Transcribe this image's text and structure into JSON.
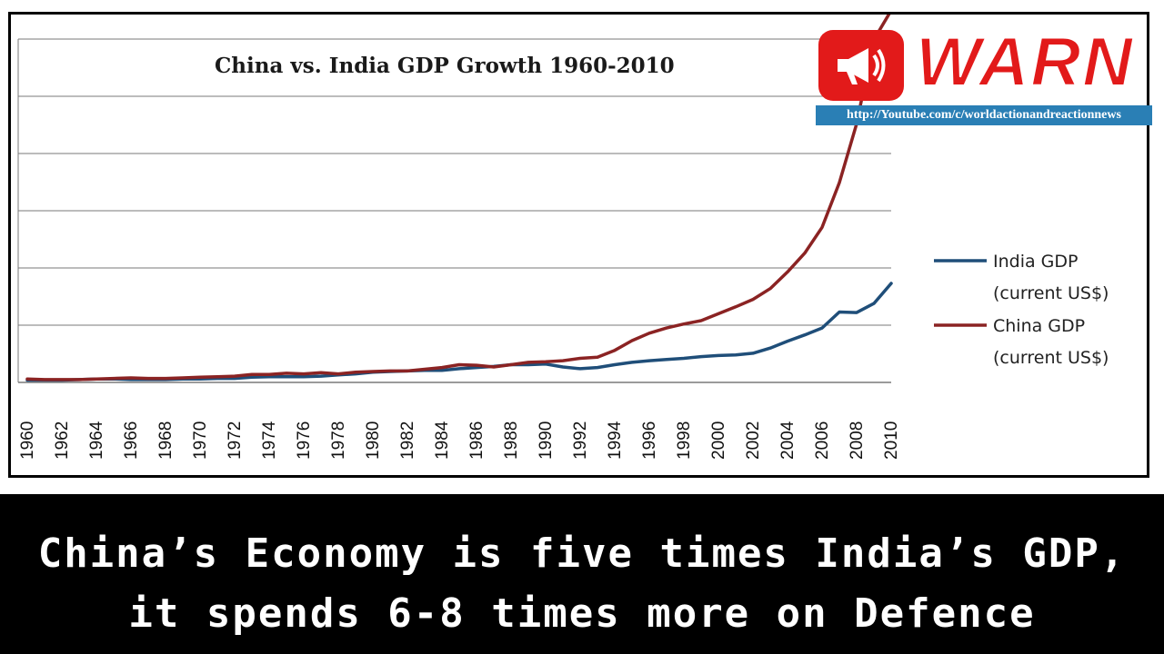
{
  "chart_data": {
    "type": "line",
    "title": "China vs. India GDP Growth 1960-2010",
    "xlabel": "",
    "ylabel": "",
    "x": [
      1960,
      1961,
      1962,
      1963,
      1964,
      1965,
      1966,
      1967,
      1968,
      1969,
      1970,
      1971,
      1972,
      1973,
      1974,
      1975,
      1976,
      1977,
      1978,
      1979,
      1980,
      1981,
      1982,
      1983,
      1984,
      1985,
      1986,
      1987,
      1988,
      1989,
      1990,
      1991,
      1992,
      1993,
      1994,
      1995,
      1996,
      1997,
      1998,
      1999,
      2000,
      2001,
      2002,
      2003,
      2004,
      2005,
      2006,
      2007,
      2008,
      2009,
      2010
    ],
    "x_tick_labels": [
      "1960",
      "1962",
      "1964",
      "1966",
      "1968",
      "1970",
      "1972",
      "1974",
      "1976",
      "1978",
      "1980",
      "1982",
      "1984",
      "1986",
      "1988",
      "1990",
      "1992",
      "1994",
      "1996",
      "1998",
      "2000",
      "2002",
      "2004",
      "2006",
      "2008",
      "2010"
    ],
    "ylim": [
      0,
      6
    ],
    "y_gridlines": 6,
    "y_tick_labels": "none",
    "grid": true,
    "legend_position": "right",
    "series": [
      {
        "name": "India GDP (current US$)",
        "color": "#1f4e79",
        "values": [
          0.04,
          0.04,
          0.04,
          0.05,
          0.06,
          0.06,
          0.05,
          0.05,
          0.05,
          0.06,
          0.06,
          0.07,
          0.07,
          0.09,
          0.1,
          0.1,
          0.1,
          0.11,
          0.13,
          0.15,
          0.18,
          0.19,
          0.2,
          0.21,
          0.21,
          0.24,
          0.26,
          0.28,
          0.31,
          0.31,
          0.32,
          0.27,
          0.24,
          0.26,
          0.31,
          0.35,
          0.38,
          0.4,
          0.42,
          0.45,
          0.47,
          0.48,
          0.51,
          0.6,
          0.72,
          0.83,
          0.95,
          1.23,
          1.22,
          1.38,
          1.73
        ]
      },
      {
        "name": "China GDP (current US$)",
        "color": "#8b2323",
        "values": [
          0.06,
          0.05,
          0.05,
          0.05,
          0.06,
          0.07,
          0.08,
          0.07,
          0.07,
          0.08,
          0.09,
          0.1,
          0.11,
          0.14,
          0.14,
          0.16,
          0.15,
          0.17,
          0.15,
          0.18,
          0.19,
          0.2,
          0.2,
          0.23,
          0.26,
          0.31,
          0.3,
          0.27,
          0.31,
          0.35,
          0.36,
          0.38,
          0.42,
          0.44,
          0.56,
          0.73,
          0.86,
          0.95,
          1.02,
          1.08,
          1.2,
          1.32,
          1.45,
          1.64,
          1.93,
          2.26,
          2.71,
          3.49,
          4.52,
          5.99,
          6.5
        ]
      }
    ],
    "legend": {
      "india_line1": "India GDP",
      "india_line2": "(current US$)",
      "china_line1": "China GDP",
      "china_line2": "(current US$)"
    }
  },
  "overlay": {
    "logo_text": "WARN",
    "logo_icon": "megaphone-icon",
    "channel_url": "http://Youtube.com/c/worldactionandreactionnews",
    "brand_color": "#e21a1a",
    "url_bar_color": "#2a7fb5"
  },
  "caption": {
    "line1": "China’s Economy is five times India’s GDP,",
    "line2": "it spends 6-8 times more on Defence"
  }
}
